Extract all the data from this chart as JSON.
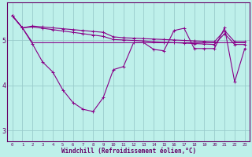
{
  "x": [
    0,
    1,
    2,
    3,
    4,
    5,
    6,
    7,
    8,
    9,
    10,
    11,
    12,
    13,
    14,
    15,
    16,
    17,
    18,
    19,
    20,
    21,
    22,
    23
  ],
  "line1": [
    5.55,
    5.28,
    5.3,
    5.27,
    5.24,
    5.21,
    5.18,
    5.15,
    5.12,
    5.09,
    5.02,
    5.01,
    5.0,
    4.99,
    4.97,
    4.96,
    4.95,
    4.94,
    4.93,
    4.92,
    4.91,
    5.15,
    4.91,
    4.91
  ],
  "line2": [
    5.55,
    5.28,
    5.32,
    5.3,
    5.28,
    5.26,
    5.24,
    5.22,
    5.2,
    5.18,
    5.08,
    5.06,
    5.05,
    5.04,
    5.03,
    5.02,
    5.01,
    5.0,
    4.99,
    4.98,
    4.97,
    5.22,
    4.97,
    4.97
  ],
  "line3": [
    5.55,
    5.28,
    4.92,
    4.52,
    4.3,
    3.9,
    3.62,
    3.47,
    3.42,
    3.73,
    4.35,
    4.42,
    4.95,
    4.95,
    4.8,
    4.77,
    5.22,
    5.27,
    4.82,
    4.82,
    4.82,
    5.28,
    4.08,
    4.82
  ],
  "line4": [
    5.55,
    5.28,
    4.95,
    4.95,
    4.95,
    4.95,
    4.95,
    4.95,
    4.95,
    4.95,
    4.95,
    4.95,
    4.95,
    4.95,
    4.95,
    4.95,
    4.95,
    4.95,
    4.95,
    4.95,
    4.95,
    4.95,
    4.95,
    4.95
  ],
  "bg_color": "#bef0ea",
  "line_color": "#880088",
  "grid_color": "#99cccc",
  "label_color": "#660066",
  "xlabel": "Windchill (Refroidissement éolien,°C)",
  "xlim": [
    -0.5,
    23.5
  ],
  "ylim": [
    2.75,
    5.85
  ],
  "yticks": [
    3,
    4,
    5
  ],
  "xticks": [
    0,
    1,
    2,
    3,
    4,
    5,
    6,
    7,
    8,
    9,
    10,
    11,
    12,
    13,
    14,
    15,
    16,
    17,
    18,
    19,
    20,
    21,
    22,
    23
  ]
}
